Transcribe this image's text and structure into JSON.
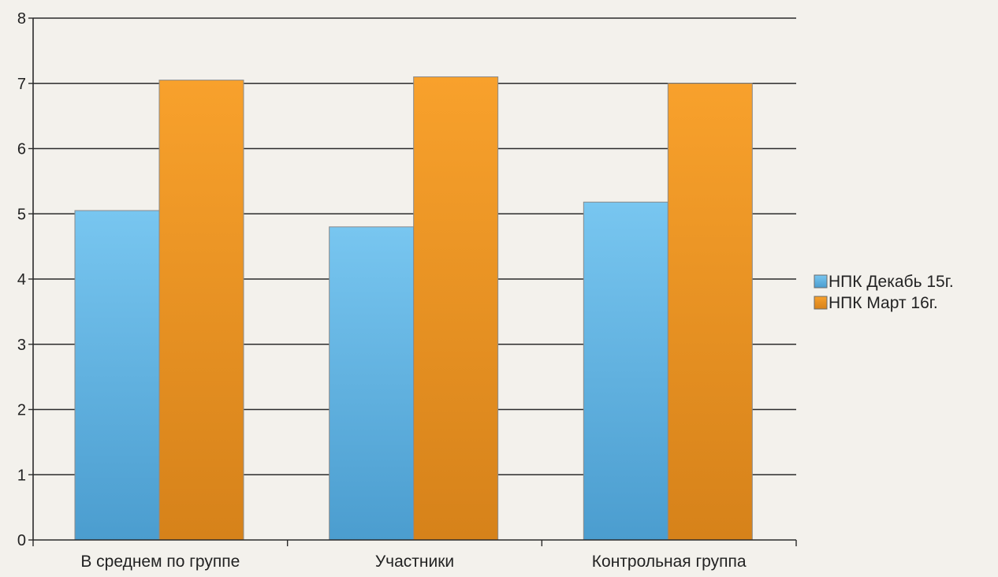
{
  "chart_data": {
    "type": "bar",
    "title": "",
    "xlabel": "",
    "ylabel": "",
    "ylim": [
      0,
      8
    ],
    "yticks": [
      "0",
      "1",
      "2",
      "3",
      "4",
      "5",
      "6",
      "7",
      "8"
    ],
    "grid": true,
    "legend_position": "right",
    "categories": [
      "В среднем по группе",
      "Участники",
      "Контрольная группа"
    ],
    "series": [
      {
        "name": "НПК Декабь 15г.",
        "values": [
          5.05,
          4.8,
          5.18
        ],
        "color": "#5aaede"
      },
      {
        "name": "НПК Март 16г.",
        "values": [
          7.05,
          7.1,
          7.0
        ],
        "color": "#f0961e"
      }
    ]
  }
}
